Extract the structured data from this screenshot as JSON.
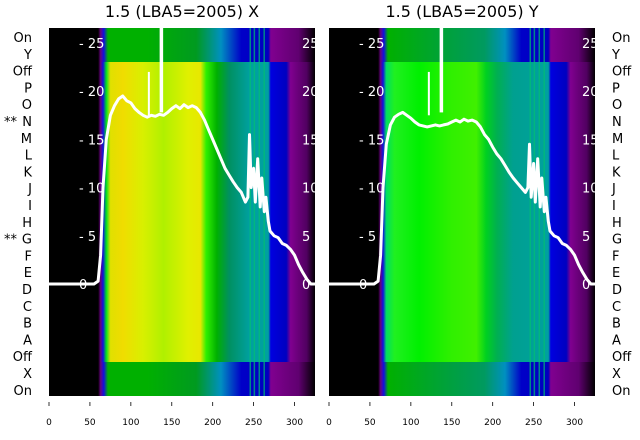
{
  "chart_data": [
    {
      "type": "heatmap+line",
      "title": "1.5 (LBA5=2005) X",
      "xlim": [
        0,
        325
      ],
      "ylim": [
        -13,
        27
      ],
      "xticks": [
        0,
        50,
        100,
        150,
        200,
        250,
        300
      ],
      "yticks": [
        0,
        5,
        10,
        15,
        20,
        25
      ],
      "row_labels": [
        "On",
        "Y",
        "Off",
        "P",
        "O",
        "N",
        "M",
        "L",
        "K",
        "J",
        "I",
        "H",
        "G",
        "F",
        "E",
        "D",
        "C",
        "B",
        "A",
        "Off",
        "X",
        "On"
      ],
      "marked_rows": {
        "N": "**",
        "G": "**"
      },
      "outer_band": [
        [
          0,
          "#000000"
        ],
        [
          60,
          "#000000"
        ],
        [
          63,
          "#6a0080"
        ],
        [
          67,
          "#1010e0"
        ],
        [
          72,
          "#00b000"
        ],
        [
          120,
          "#00b000"
        ],
        [
          180,
          "#009a20"
        ],
        [
          210,
          "#0090c0"
        ],
        [
          235,
          "#0000c8"
        ],
        [
          268,
          "#0000c0"
        ],
        [
          271,
          "#800090"
        ],
        [
          305,
          "#600070"
        ],
        [
          325,
          "#000000"
        ]
      ],
      "inner_band": [
        [
          0,
          "#000000"
        ],
        [
          60,
          "#000000"
        ],
        [
          63,
          "#6a0080"
        ],
        [
          66,
          "#1010e0"
        ],
        [
          70,
          "#00e020"
        ],
        [
          75,
          "#e0e000"
        ],
        [
          90,
          "#f0dc00"
        ],
        [
          115,
          "#d8f000"
        ],
        [
          140,
          "#b0f000"
        ],
        [
          170,
          "#e0f000"
        ],
        [
          185,
          "#e8e800"
        ],
        [
          192,
          "#30f000"
        ],
        [
          205,
          "#00b000"
        ],
        [
          220,
          "#009060"
        ],
        [
          245,
          "#00a0a0"
        ],
        [
          268,
          "#00a0a0"
        ],
        [
          271,
          "#0000e0"
        ],
        [
          290,
          "#0000c0"
        ],
        [
          295,
          "#800090"
        ],
        [
          315,
          "#500060"
        ],
        [
          325,
          "#000000"
        ]
      ],
      "line": {
        "x": [
          0,
          55,
          60,
          63,
          66,
          70,
          75,
          80,
          85,
          90,
          95,
          100,
          105,
          110,
          115,
          120,
          125,
          130,
          135,
          140,
          145,
          150,
          155,
          160,
          165,
          170,
          175,
          180,
          185,
          190,
          195,
          200,
          205,
          210,
          215,
          220,
          225,
          230,
          235,
          240,
          243,
          245,
          247,
          250,
          252,
          255,
          258,
          260,
          263,
          265,
          268,
          270,
          275,
          280,
          285,
          290,
          295,
          300,
          305,
          310,
          315,
          320,
          325
        ],
        "y": [
          0,
          0,
          0.3,
          3,
          10,
          15,
          17.5,
          18.5,
          19.2,
          19.5,
          19,
          18.8,
          18.2,
          17.8,
          17.5,
          17.3,
          17.5,
          17.4,
          17.6,
          17.5,
          17.8,
          18.2,
          18.5,
          18.2,
          18.6,
          18.3,
          18.5,
          18.3,
          17.8,
          17,
          16,
          15,
          14,
          13,
          12,
          11.3,
          10.6,
          10,
          9.5,
          8.5,
          9,
          15.5,
          10,
          12,
          8.5,
          13,
          8,
          11,
          7.5,
          9,
          6.5,
          5.5,
          5,
          4.8,
          4.2,
          4,
          3.6,
          3,
          2,
          1.2,
          0.5,
          0,
          0
        ]
      }
    },
    {
      "type": "heatmap+line",
      "title": "1.5 (LBA5=2005) Y",
      "xlim": [
        0,
        325
      ],
      "ylim": [
        -13,
        27
      ],
      "xticks": [
        0,
        50,
        100,
        150,
        200,
        250,
        300
      ],
      "yticks": [
        0,
        5,
        10,
        15,
        20,
        25
      ],
      "row_labels": [
        "On",
        "Y",
        "Off",
        "P",
        "O",
        "N",
        "M",
        "L",
        "K",
        "J",
        "I",
        "H",
        "G",
        "F",
        "E",
        "D",
        "C",
        "B",
        "A",
        "Off",
        "X",
        "On"
      ],
      "outer_band": [
        [
          0,
          "#000000"
        ],
        [
          60,
          "#000000"
        ],
        [
          63,
          "#6a0080"
        ],
        [
          67,
          "#1010e0"
        ],
        [
          72,
          "#00b000"
        ],
        [
          150,
          "#00a040"
        ],
        [
          190,
          "#009a60"
        ],
        [
          215,
          "#0090c0"
        ],
        [
          235,
          "#0000c8"
        ],
        [
          268,
          "#0000c0"
        ],
        [
          271,
          "#800090"
        ],
        [
          305,
          "#600070"
        ],
        [
          325,
          "#000000"
        ]
      ],
      "inner_band": [
        [
          0,
          "#000000"
        ],
        [
          60,
          "#000000"
        ],
        [
          63,
          "#6a0080"
        ],
        [
          66,
          "#1010e0"
        ],
        [
          70,
          "#00e060"
        ],
        [
          80,
          "#20f020"
        ],
        [
          110,
          "#00f000"
        ],
        [
          150,
          "#30f000"
        ],
        [
          180,
          "#40f000"
        ],
        [
          192,
          "#00d020"
        ],
        [
          205,
          "#00b050"
        ],
        [
          225,
          "#00a090"
        ],
        [
          268,
          "#00a0a0"
        ],
        [
          271,
          "#0000e0"
        ],
        [
          290,
          "#0000c0"
        ],
        [
          295,
          "#800090"
        ],
        [
          315,
          "#500060"
        ],
        [
          325,
          "#000000"
        ]
      ],
      "line": {
        "x": [
          0,
          55,
          60,
          63,
          66,
          70,
          75,
          80,
          85,
          90,
          95,
          100,
          105,
          110,
          115,
          120,
          125,
          130,
          135,
          140,
          145,
          150,
          155,
          160,
          165,
          170,
          175,
          180,
          185,
          190,
          195,
          200,
          205,
          210,
          215,
          220,
          225,
          230,
          235,
          240,
          243,
          245,
          247,
          250,
          252,
          255,
          258,
          260,
          263,
          265,
          268,
          270,
          275,
          280,
          285,
          290,
          295,
          300,
          305,
          310,
          315,
          320,
          325
        ],
        "y": [
          0,
          0,
          0.3,
          3,
          10,
          14.5,
          16.5,
          17.3,
          17.6,
          17.8,
          17.5,
          17.2,
          16.8,
          16.5,
          16.4,
          16.3,
          16.4,
          16.5,
          16.4,
          16.5,
          16.6,
          16.8,
          17,
          16.8,
          17.1,
          16.9,
          17,
          16.8,
          16.3,
          15.5,
          15,
          14.2,
          13.5,
          13,
          12.3,
          11.6,
          11,
          10.5,
          10,
          9.5,
          10,
          14.5,
          9,
          12.5,
          8.5,
          13,
          8,
          11,
          7.5,
          9,
          6.5,
          5.5,
          5,
          4.8,
          4.2,
          4,
          3.6,
          3,
          2,
          1.2,
          0.5,
          0,
          0
        ]
      }
    }
  ]
}
